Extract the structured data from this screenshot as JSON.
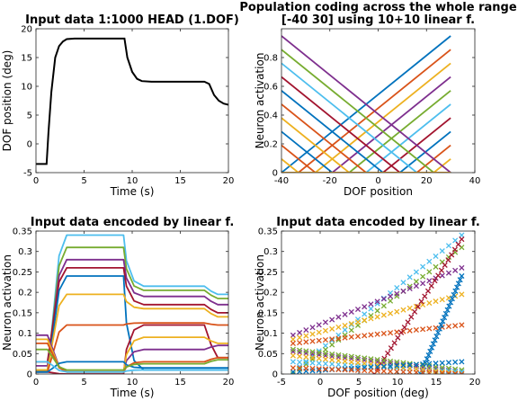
{
  "chart_data": [
    {
      "type": "line",
      "title": "Input data 1:1000 HEAD (1.DOF)",
      "xlabel": "Time (s)",
      "ylabel": "DOF position (deg)",
      "xlim": [
        0,
        20
      ],
      "ylim": [
        -5,
        20
      ],
      "xticks": [
        "0",
        "5",
        "10",
        "15",
        "20"
      ],
      "yticks": [
        "-5",
        "0",
        "5",
        "10",
        "15",
        "20"
      ],
      "series": [
        {
          "color": "#000000",
          "x": [
            0,
            1.1,
            1.3,
            1.6,
            2.0,
            2.4,
            2.8,
            3.2,
            4,
            6,
            8,
            9.2,
            9.5,
            10,
            10.5,
            11,
            12,
            14,
            16,
            17.5,
            18,
            18.5,
            19,
            19.5,
            20
          ],
          "y": [
            -3.5,
            -3.5,
            2,
            9,
            15,
            17,
            17.8,
            18.2,
            18.3,
            18.3,
            18.3,
            18.3,
            15,
            12.5,
            11.3,
            10.9,
            10.8,
            10.8,
            10.8,
            10.8,
            10.4,
            8.5,
            7.5,
            7.0,
            6.8
          ]
        }
      ]
    },
    {
      "type": "line",
      "title": "Population coding across the whole range",
      "subtitle": "[-40 30] using 10+10 linear f.",
      "xlabel": "DOF position",
      "ylabel": "Neuron activation",
      "xlim": [
        -40,
        40
      ],
      "ylim": [
        0,
        1
      ],
      "xticks": [
        "-40",
        "-20",
        "0",
        "20",
        "40"
      ],
      "yticks": [
        "0",
        "0.2",
        "0.4",
        "0.6",
        "0.8"
      ],
      "family": {
        "range": [
          -40,
          30
        ],
        "increasing_zero_at": [
          -40,
          -33,
          -26,
          -19,
          -12,
          -5,
          2,
          9,
          16,
          23
        ],
        "decreasing_zero_at": [
          30,
          23,
          16,
          9,
          2,
          -5,
          -12,
          -19,
          -26,
          -33
        ],
        "max_activation": 0.95
      },
      "colors": [
        "#0072BD",
        "#D95319",
        "#EDB120",
        "#7E2F8E",
        "#77AC30",
        "#4DBEEE",
        "#A2142F",
        "#0072BD",
        "#D95319",
        "#EDB120"
      ]
    },
    {
      "type": "line",
      "title": "Input data encoded by linear f.",
      "xlabel": "Time (s)",
      "ylabel": "Neuron activation",
      "xlim": [
        0,
        20
      ],
      "ylim": [
        0,
        0.35
      ],
      "xticks": [
        "0",
        "5",
        "10",
        "15",
        "20"
      ],
      "yticks": [
        "0",
        "0.05",
        "0.1",
        "0.15",
        "0.2",
        "0.25",
        "0.3",
        "0.35"
      ],
      "series": [
        {
          "color": "#4DBEEE",
          "levels": [
            0.005,
            0.34,
            0.215,
            0.195
          ]
        },
        {
          "color": "#77AC30",
          "levels": [
            0.01,
            0.31,
            0.205,
            0.185
          ]
        },
        {
          "color": "#7E2F8E",
          "levels": [
            0.02,
            0.28,
            0.19,
            0.17
          ]
        },
        {
          "color": "#A2142F",
          "levels": [
            0.03,
            0.26,
            0.17,
            0.15
          ]
        },
        {
          "color": "#0072BD",
          "levels": [
            0.005,
            0.24,
            0.01,
            0.01
          ]
        },
        {
          "color": "#EDB120",
          "levels": [
            0.01,
            0.195,
            0.16,
            0.14
          ]
        },
        {
          "color": "#D95319",
          "levels": [
            0.005,
            0.12,
            0.125,
            0.12
          ]
        },
        {
          "color": "#A2142F",
          "levels": [
            0.005,
            0.0,
            0.12,
            0.04
          ]
        },
        {
          "color": "#7E2F8E",
          "levels": [
            0.095,
            0.005,
            0.06,
            0.07
          ]
        },
        {
          "color": "#EDB120",
          "levels": [
            0.085,
            0.005,
            0.09,
            0.075
          ]
        },
        {
          "color": "#D95319",
          "levels": [
            0.075,
            0.005,
            0.03,
            0.04
          ]
        },
        {
          "color": "#0072BD",
          "levels": [
            0.005,
            0.03,
            0.015,
            0.015
          ]
        },
        {
          "color": "#77AC30",
          "levels": [
            0.06,
            0.01,
            0.025,
            0.035
          ]
        },
        {
          "color": "#4DBEEE",
          "levels": [
            0.03,
            0.005,
            0.01,
            0.01
          ]
        }
      ]
    },
    {
      "type": "scatter",
      "title": "Input data encoded by linear f.",
      "xlabel": "DOF position (deg)",
      "ylabel": "Neuron activation",
      "xlim": [
        -5,
        20
      ],
      "ylim": [
        0,
        0.35
      ],
      "xticks": [
        "-5",
        "0",
        "5",
        "10",
        "15",
        "20"
      ],
      "yticks": [
        "0",
        "0.05",
        "0.1",
        "0.15",
        "0.2",
        "0.25",
        "0.3",
        "0.35"
      ],
      "marker": "x",
      "series": [
        {
          "color": "#4DBEEE",
          "x": [
            -3.5,
            18.3
          ],
          "y": [
            0.005,
            0.34
          ]
        },
        {
          "color": "#77AC30",
          "x": [
            -3.5,
            18.3
          ],
          "y": [
            0.0,
            0.31
          ]
        },
        {
          "color": "#7E2F8E",
          "x": [
            -3.5,
            18.3
          ],
          "y": [
            0.095,
            0.26
          ]
        },
        {
          "color": "#EDB120",
          "x": [
            -3.5,
            18.3
          ],
          "y": [
            0.085,
            0.195
          ]
        },
        {
          "color": "#D95319",
          "x": [
            -3.5,
            18.3
          ],
          "y": [
            0.075,
            0.12
          ]
        },
        {
          "color": "#A2142F",
          "x": [
            7.0,
            18.3
          ],
          "y": [
            0.0,
            0.33
          ]
        },
        {
          "color": "#0072BD",
          "x": [
            13.0,
            18.3
          ],
          "y": [
            0.0,
            0.24
          ]
        },
        {
          "color": "#7E2F8E",
          "x": [
            -3.5,
            18.3
          ],
          "y": [
            0.055,
            0.005
          ]
        },
        {
          "color": "#77AC30",
          "x": [
            -3.5,
            18.3
          ],
          "y": [
            0.06,
            0.01
          ]
        },
        {
          "color": "#4DBEEE",
          "x": [
            -3.5,
            18.3
          ],
          "y": [
            0.03,
            0.005
          ]
        },
        {
          "color": "#EDB120",
          "x": [
            -3.5,
            18.3
          ],
          "y": [
            0.045,
            0.0
          ]
        },
        {
          "color": "#0072BD",
          "x": [
            -3.5,
            18.3
          ],
          "y": [
            0.005,
            0.03
          ]
        },
        {
          "color": "#D95319",
          "x": [
            -3.5,
            18.3
          ],
          "y": [
            0.015,
            0.0
          ]
        }
      ]
    }
  ]
}
